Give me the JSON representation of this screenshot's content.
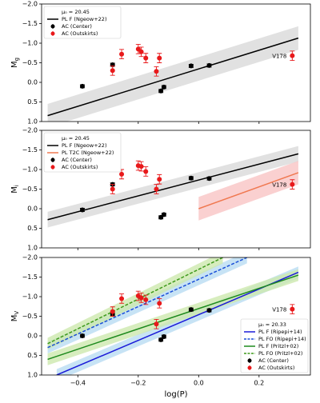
{
  "chart_data": [
    {
      "type": "scatter",
      "ylabel": "M",
      "ylabel_subscript": "g",
      "ylim": [
        -2.0,
        1.0
      ],
      "y_inverted": true,
      "yticks": [
        {
          "value": -2.0,
          "label": "−2.0"
        },
        {
          "value": -1.5,
          "label": "−1.5"
        },
        {
          "value": -1.0,
          "label": "−1.0"
        },
        {
          "value": -0.5,
          "label": "−0.5"
        },
        {
          "value": 0,
          "label": "0.0"
        },
        {
          "value": 0.5,
          "label": "0.5"
        },
        {
          "value": 1.0,
          "label": "1.0"
        }
      ],
      "xlim": [
        -0.52,
        0.37
      ],
      "xticks": [
        -0.4,
        -0.2,
        0,
        0.2
      ],
      "legend_title": "μ₀ = 20.45",
      "legend_position": "upper left",
      "annotation": "V178",
      "series": [
        {
          "name": "PL F (Ngeow+22)",
          "kind": "line",
          "color": "#000000",
          "band_color": "#d9d9d9",
          "x": [
            -0.5,
            0.33
          ],
          "values": [
            0.85,
            -1.13
          ],
          "band": 0.3
        },
        {
          "name": "AC (Center)",
          "kind": "points",
          "color": "#000000",
          "x": [
            -0.385,
            -0.285,
            -0.125,
            -0.115,
            -0.025,
            0.035
          ],
          "values": [
            0.1,
            -0.45,
            0.22,
            0.12,
            -0.42,
            -0.43
          ],
          "errors": [
            0.04,
            0.04,
            0.04,
            0.04,
            0.04,
            0.04
          ]
        },
        {
          "name": "AC (Outskirts)",
          "kind": "points",
          "color": "#e8191b",
          "x": [
            -0.285,
            -0.255,
            -0.2,
            -0.19,
            -0.175,
            -0.14,
            -0.13,
            0.31
          ],
          "values": [
            -0.3,
            -0.72,
            -0.85,
            -0.78,
            -0.62,
            -0.28,
            -0.62,
            -0.68
          ],
          "errors": [
            0.12,
            0.12,
            0.12,
            0.12,
            0.12,
            0.12,
            0.12,
            0.12
          ]
        }
      ]
    },
    {
      "type": "scatter",
      "ylabel": "M",
      "ylabel_subscript": "i",
      "ylim": [
        -2.0,
        1.0
      ],
      "y_inverted": true,
      "yticks": [
        {
          "value": -2.0,
          "label": "−2.0"
        },
        {
          "value": -1.5,
          "label": "−1.5"
        },
        {
          "value": -1.0,
          "label": "−1.0"
        },
        {
          "value": -0.5,
          "label": "−0.5"
        },
        {
          "value": 0,
          "label": "0.0"
        },
        {
          "value": 0.5,
          "label": "0.5"
        },
        {
          "value": 1.0,
          "label": "1.0"
        }
      ],
      "xlim": [
        -0.52,
        0.37
      ],
      "xticks": [
        -0.4,
        -0.2,
        0,
        0.2
      ],
      "legend_title": "μ₀ = 20.45",
      "legend_position": "upper left",
      "annotation": "V178",
      "series": [
        {
          "name": "PL F (Ngeow+22)",
          "kind": "line",
          "color": "#000000",
          "band_color": "#d9d9d9",
          "x": [
            -0.5,
            0.33
          ],
          "values": [
            0.28,
            -1.4
          ],
          "band": 0.2
        },
        {
          "name": "PL T2C (Ngeow+22)",
          "kind": "line",
          "color": "#f07850",
          "band_color": "#f9c4c4",
          "x": [
            0.0,
            0.33
          ],
          "values": [
            0.0,
            -0.92
          ],
          "band": 0.3
        },
        {
          "name": "AC (Center)",
          "kind": "points",
          "color": "#000000",
          "x": [
            -0.385,
            -0.285,
            -0.125,
            -0.115,
            -0.025,
            0.035
          ],
          "values": [
            0.03,
            -0.62,
            0.22,
            0.15,
            -0.78,
            -0.77
          ],
          "errors": [
            0.04,
            0.04,
            0.04,
            0.04,
            0.04,
            0.04
          ]
        },
        {
          "name": "AC (Outskirts)",
          "kind": "points",
          "color": "#e8191b",
          "x": [
            -0.285,
            -0.255,
            -0.2,
            -0.19,
            -0.175,
            -0.14,
            -0.13,
            0.31
          ],
          "values": [
            -0.5,
            -0.88,
            -1.1,
            -1.08,
            -0.95,
            -0.5,
            -0.75,
            -0.62
          ],
          "errors": [
            0.12,
            0.12,
            0.12,
            0.12,
            0.12,
            0.12,
            0.12,
            0.12
          ]
        }
      ]
    },
    {
      "type": "scatter",
      "ylabel": "M",
      "ylabel_subscript": "V",
      "xlabel": "log(P)",
      "ylim": [
        -2.0,
        1.0
      ],
      "y_inverted": true,
      "yticks": [
        {
          "value": -2.0,
          "label": "−2.0"
        },
        {
          "value": -1.5,
          "label": "−1.5"
        },
        {
          "value": -1.0,
          "label": "−1.0"
        },
        {
          "value": -0.5,
          "label": "−0.5"
        },
        {
          "value": 0,
          "label": "0.0"
        },
        {
          "value": 0.5,
          "label": "0.5"
        },
        {
          "value": 1.0,
          "label": "1.0"
        }
      ],
      "xlim": [
        -0.52,
        0.37
      ],
      "xticks": [
        {
          "value": -0.4,
          "label": "−0.4"
        },
        {
          "value": -0.2,
          "label": "−0.2"
        },
        {
          "value": 0,
          "label": "0.0"
        },
        {
          "value": 0.2,
          "label": "0.2"
        }
      ],
      "legend_title": "μ₀ = 20.33",
      "legend_position": "lower right",
      "annotation": "V178",
      "series": [
        {
          "name": "PL F (Ripepi+14)",
          "kind": "line",
          "color": "#1a1ad8",
          "band_color": "#b9dcf2",
          "x": [
            -0.47,
            0.33
          ],
          "values": [
            1.0,
            -1.62
          ],
          "band": 0.15
        },
        {
          "name": "PL FO (Ripepi+14)",
          "kind": "line",
          "dash": true,
          "color": "#1a4fd8",
          "band_color": "#b9dcf2",
          "x": [
            -0.5,
            0.16
          ],
          "values": [
            0.3,
            -2.0
          ],
          "band": 0.15
        },
        {
          "name": "PL F (Pritzl+02)",
          "kind": "line",
          "color": "#1e8a1e",
          "band_color": "#cde9ae",
          "x": [
            -0.5,
            0.33
          ],
          "values": [
            0.6,
            -1.55
          ],
          "band": 0.15
        },
        {
          "name": "PL FO (Pritzl+02)",
          "kind": "line",
          "dash": true,
          "color": "#3f9a1c",
          "band_color": "#cde9ae",
          "x": [
            -0.5,
            0.08
          ],
          "values": [
            0.2,
            -2.0
          ],
          "band": 0.15
        },
        {
          "name": "AC (Center)",
          "kind": "points",
          "color": "#000000",
          "x": [
            -0.385,
            -0.285,
            -0.125,
            -0.115,
            -0.025,
            0.035
          ],
          "values": [
            0.0,
            -0.55,
            0.1,
            0.02,
            -0.67,
            -0.65
          ],
          "errors": [
            0.04,
            0.04,
            0.04,
            0.04,
            0.04,
            0.04
          ]
        },
        {
          "name": "AC (Outskirts)",
          "kind": "points",
          "color": "#e8191b",
          "x": [
            -0.285,
            -0.255,
            -0.2,
            -0.19,
            -0.175,
            -0.14,
            -0.13,
            0.31
          ],
          "values": [
            -0.62,
            -0.95,
            -1.02,
            -0.97,
            -0.92,
            -0.3,
            -0.83,
            -0.68
          ],
          "errors": [
            0.12,
            0.12,
            0.12,
            0.12,
            0.12,
            0.12,
            0.12,
            0.12
          ]
        }
      ]
    }
  ]
}
